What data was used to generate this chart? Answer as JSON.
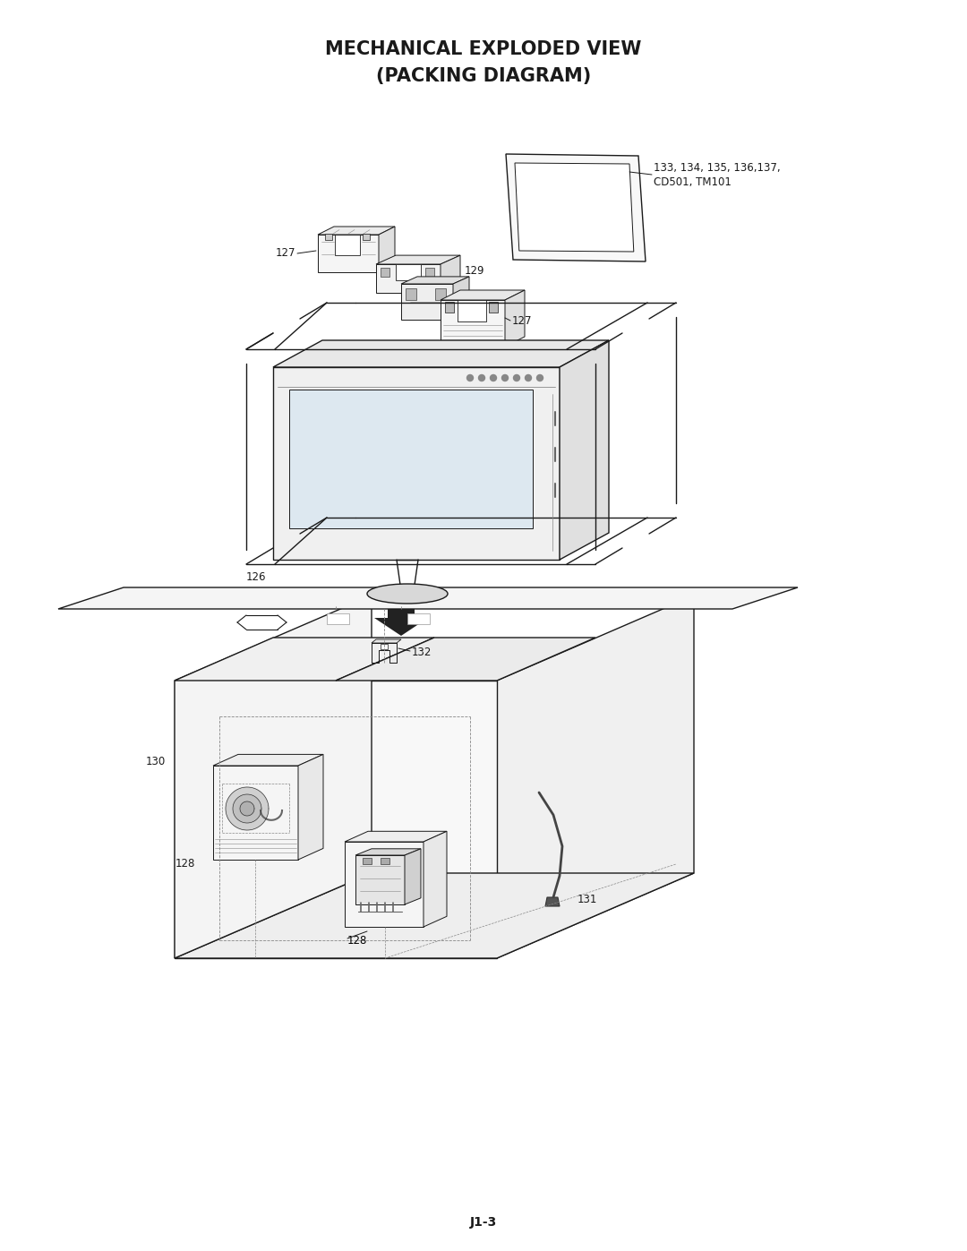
{
  "title_line1": "MECHANICAL EXPLODED VIEW",
  "title_line2": "(PACKING DIAGRAM)",
  "page_label": "J1-3",
  "bg_color": "#ffffff",
  "line_color": "#1a1a1a",
  "title_fontsize": 15,
  "label_fontsize": 8.5,
  "page_label_fontsize": 10
}
